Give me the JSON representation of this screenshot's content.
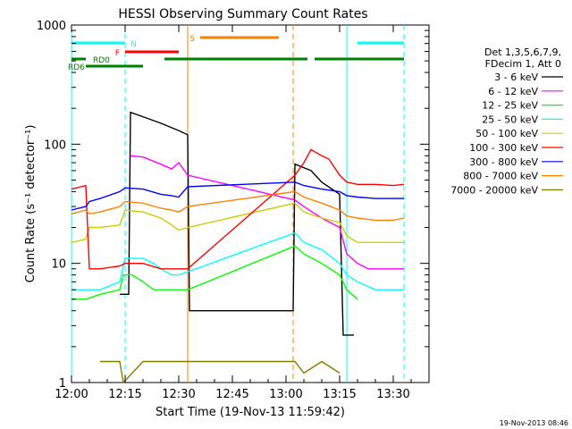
{
  "chart_data": {
    "type": "line",
    "title": "HESSI Observing Summary Count Rates",
    "xlabel": "Start Time (19-Nov-13 11:59:42)",
    "ylabel": "Count Rate (s⁻¹ detector⁻¹)",
    "ylog": true,
    "ylim": [
      1,
      1000
    ],
    "xlim_minutes": [
      0,
      100
    ],
    "x_ticks": [
      {
        "t": 0,
        "label": "12:00"
      },
      {
        "t": 15,
        "label": "12:15"
      },
      {
        "t": 30,
        "label": "12:30"
      },
      {
        "t": 45,
        "label": "12:45"
      },
      {
        "t": 60,
        "label": "13:00"
      },
      {
        "t": 75,
        "label": "13:15"
      },
      {
        "t": 90,
        "label": "13:30"
      }
    ],
    "y_ticks": [
      {
        "v": 1,
        "label": "1"
      },
      {
        "v": 10,
        "label": "10"
      },
      {
        "v": 100,
        "label": "100"
      },
      {
        "v": 1000,
        "label": "1000"
      }
    ],
    "legend_header": [
      "Det 1,3,5,6,7,9,",
      "FDecim 1, Att 0"
    ],
    "legend_position": "right",
    "timestamp": "19-Nov-2013 08:46",
    "series": [
      {
        "name": "3 - 6 keV",
        "color": "#000000",
        "points": [
          [
            13.5,
            5.5
          ],
          [
            16,
            5.5
          ],
          [
            16.5,
            185
          ],
          [
            20,
            170
          ],
          [
            25,
            150
          ],
          [
            30,
            130
          ],
          [
            32.5,
            120
          ],
          [
            33,
            4
          ],
          [
            62,
            4
          ],
          [
            62.5,
            68
          ],
          [
            67,
            60
          ],
          [
            70,
            48
          ],
          [
            75,
            38
          ],
          [
            76,
            2.5
          ],
          [
            79,
            2.5
          ]
        ]
      },
      {
        "name": "6 - 12 keV",
        "color": "#ff00ff",
        "points": [
          [
            16.5,
            80
          ],
          [
            20,
            78
          ],
          [
            25,
            68
          ],
          [
            28,
            62
          ],
          [
            30,
            70
          ],
          [
            32.5,
            55
          ],
          [
            62.5,
            34
          ],
          [
            65,
            30
          ],
          [
            70,
            24
          ],
          [
            75,
            20
          ],
          [
            77,
            12
          ],
          [
            80,
            10
          ],
          [
            83,
            9
          ],
          [
            90,
            9
          ],
          [
            93,
            9
          ]
        ]
      },
      {
        "name": "12 - 25 keV",
        "color": "#00ff00",
        "points": [
          [
            0,
            5
          ],
          [
            4,
            5
          ],
          [
            8,
            5.5
          ],
          [
            13.5,
            6
          ],
          [
            14.5,
            8
          ],
          [
            17,
            8
          ],
          [
            20,
            7
          ],
          [
            23,
            6
          ],
          [
            26,
            6
          ],
          [
            30,
            6
          ],
          [
            32.5,
            6
          ],
          [
            62.5,
            14
          ],
          [
            65,
            12
          ],
          [
            70,
            10
          ],
          [
            75,
            8
          ],
          [
            77,
            6
          ],
          [
            80,
            5
          ]
        ]
      },
      {
        "name": "25 - 50 keV",
        "color": "#00ffff",
        "points": [
          [
            0,
            6
          ],
          [
            4,
            6
          ],
          [
            5,
            6
          ],
          [
            8,
            6
          ],
          [
            13.5,
            7
          ],
          [
            15,
            11
          ],
          [
            20,
            11
          ],
          [
            23,
            10
          ],
          [
            25,
            9
          ],
          [
            28,
            8
          ],
          [
            30,
            8
          ],
          [
            32.5,
            8.5
          ],
          [
            62.5,
            18
          ],
          [
            65,
            15
          ],
          [
            70,
            13
          ],
          [
            75,
            10
          ],
          [
            77,
            8
          ],
          [
            80,
            7
          ],
          [
            85,
            6
          ],
          [
            90,
            6
          ],
          [
            93,
            6
          ]
        ]
      },
      {
        "name": "50 - 100 keV",
        "color": "#cccc00",
        "points": [
          [
            0,
            15
          ],
          [
            4,
            16
          ],
          [
            5,
            20
          ],
          [
            8,
            20
          ],
          [
            13.5,
            21
          ],
          [
            15,
            28
          ],
          [
            20,
            27
          ],
          [
            25,
            24
          ],
          [
            28,
            21
          ],
          [
            30,
            19
          ],
          [
            32.5,
            20
          ],
          [
            62.5,
            32
          ],
          [
            65,
            27
          ],
          [
            70,
            24
          ],
          [
            75,
            22
          ],
          [
            77,
            17
          ],
          [
            80,
            15
          ],
          [
            85,
            15
          ],
          [
            90,
            15
          ],
          [
            93,
            15
          ]
        ]
      },
      {
        "name": "100 - 300 keV",
        "color": "#ff0000",
        "points": [
          [
            0,
            42
          ],
          [
            4,
            45
          ],
          [
            5,
            9
          ],
          [
            8,
            9
          ],
          [
            13.5,
            9.5
          ],
          [
            15,
            10
          ],
          [
            20,
            10
          ],
          [
            25,
            9
          ],
          [
            28,
            9
          ],
          [
            30,
            9
          ],
          [
            32.5,
            9
          ],
          [
            62.5,
            55
          ],
          [
            65,
            70
          ],
          [
            67,
            90
          ],
          [
            70,
            80
          ],
          [
            72,
            75
          ],
          [
            75,
            55
          ],
          [
            77,
            48
          ],
          [
            80,
            46
          ],
          [
            85,
            46
          ],
          [
            90,
            45
          ],
          [
            93,
            46
          ]
        ]
      },
      {
        "name": "300 - 800 keV",
        "color": "#0000ff",
        "points": [
          [
            0,
            28
          ],
          [
            4,
            30
          ],
          [
            5,
            33
          ],
          [
            8,
            35
          ],
          [
            13.5,
            40
          ],
          [
            15,
            43
          ],
          [
            20,
            42
          ],
          [
            25,
            38
          ],
          [
            28,
            37
          ],
          [
            30,
            36
          ],
          [
            32.5,
            44
          ],
          [
            62.5,
            48
          ],
          [
            65,
            45
          ],
          [
            70,
            42
          ],
          [
            75,
            40
          ],
          [
            77,
            37
          ],
          [
            80,
            36
          ],
          [
            85,
            35
          ],
          [
            90,
            35
          ],
          [
            93,
            35
          ]
        ]
      },
      {
        "name": "800 - 7000 keV",
        "color": "#ff8000",
        "points": [
          [
            0,
            26
          ],
          [
            4,
            28
          ],
          [
            5,
            26
          ],
          [
            8,
            27
          ],
          [
            13.5,
            30
          ],
          [
            15,
            33
          ],
          [
            20,
            32
          ],
          [
            25,
            29
          ],
          [
            28,
            28
          ],
          [
            30,
            27
          ],
          [
            32.5,
            30
          ],
          [
            62.5,
            40
          ],
          [
            65,
            36
          ],
          [
            70,
            32
          ],
          [
            75,
            28
          ],
          [
            77,
            25
          ],
          [
            80,
            24
          ],
          [
            85,
            23
          ],
          [
            90,
            23
          ],
          [
            93,
            24
          ]
        ]
      },
      {
        "name": "7000 - 20000 keV",
        "color": "#808000",
        "points": [
          [
            8,
            1.5
          ],
          [
            13.5,
            1.5
          ],
          [
            14.5,
            1
          ],
          [
            20,
            1.5
          ],
          [
            62.5,
            1.5
          ],
          [
            65,
            1.2
          ],
          [
            70,
            1.5
          ],
          [
            75,
            1.2
          ]
        ]
      }
    ],
    "attenuator_bars": [
      {
        "label": "N",
        "color": "#00ffff",
        "row": 0,
        "segments": [
          [
            0,
            15
          ]
        ]
      },
      {
        "label": "",
        "color": "#00ffff",
        "row": 0,
        "segments": [
          [
            80,
            93
          ]
        ]
      },
      {
        "label": "S",
        "color": "#ff8000",
        "row": 1,
        "segments": [
          [
            36,
            58
          ]
        ]
      },
      {
        "label": "F",
        "color": "#ff0000",
        "row": 2,
        "segments": [
          [
            15,
            30
          ]
        ]
      },
      {
        "label": "RD0",
        "color": "#008000",
        "row": 3,
        "segments": [
          [
            0,
            4
          ],
          [
            26,
            60
          ],
          [
            60,
            66
          ],
          [
            68,
            93
          ]
        ]
      },
      {
        "label": "RD6",
        "color": "#008000",
        "row": 4,
        "segments": [
          [
            4,
            20
          ]
        ]
      }
    ],
    "vertical_lines": [
      {
        "t": 0,
        "color": "#00ffff",
        "dash": false
      },
      {
        "t": 15,
        "color": "#00ffff",
        "dash": true
      },
      {
        "t": 32.5,
        "color": "#ff8000",
        "dash": false
      },
      {
        "t": 62,
        "color": "#ff8000",
        "dash": true
      },
      {
        "t": 77,
        "color": "#00ffff",
        "dash": false
      },
      {
        "t": 93,
        "color": "#00ffff",
        "dash": true
      }
    ]
  }
}
